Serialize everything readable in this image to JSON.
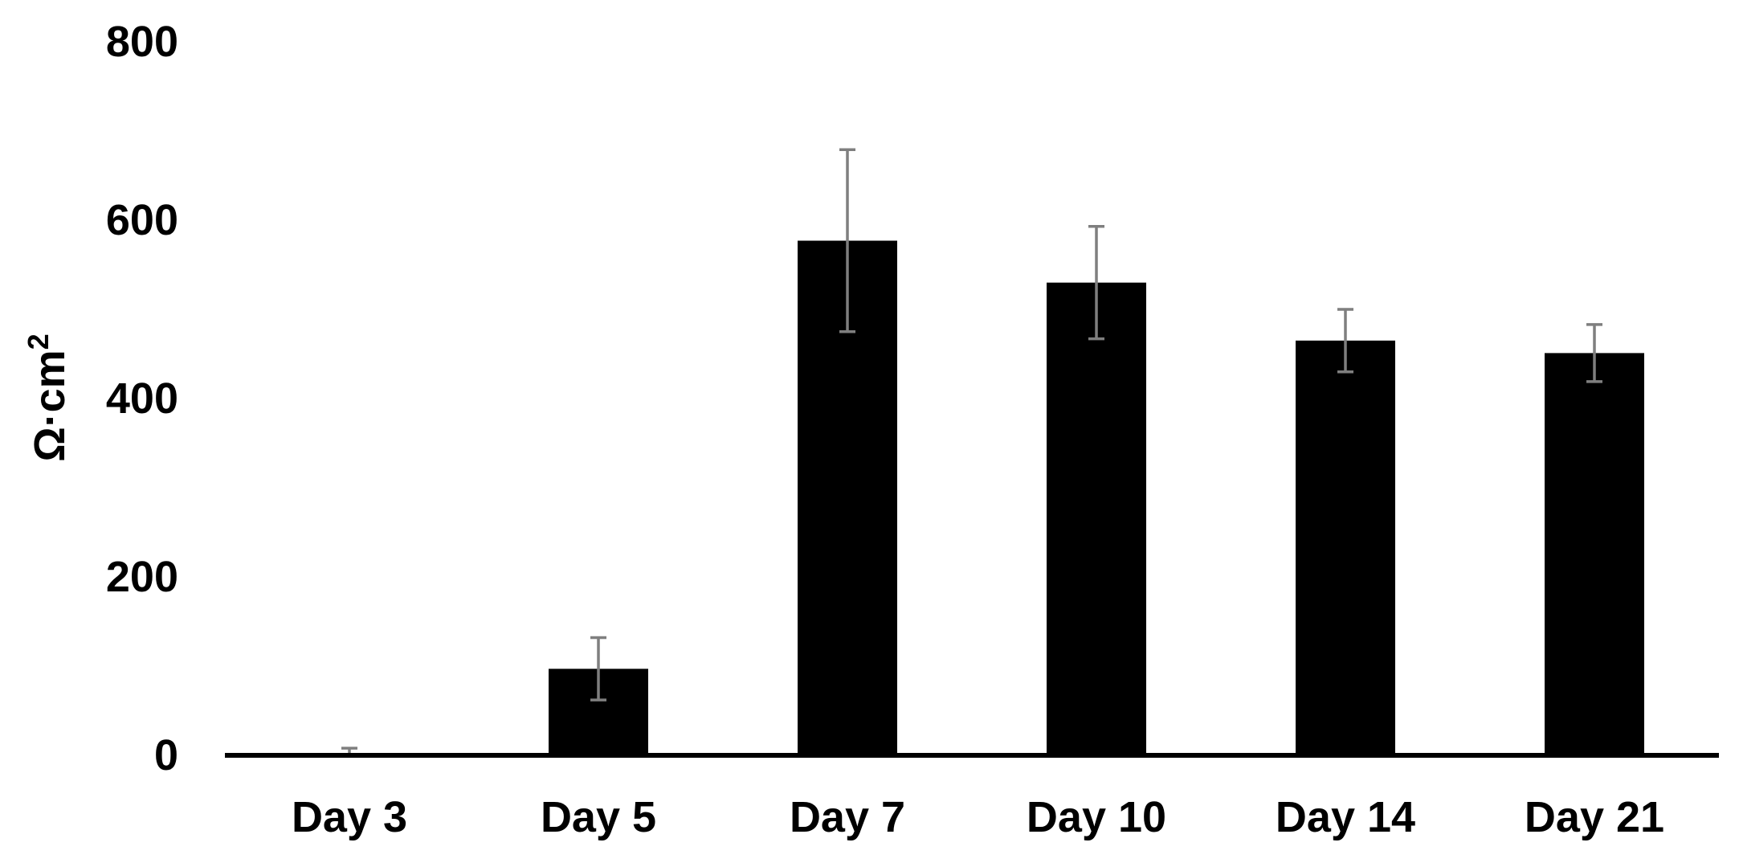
{
  "chart_data": {
    "type": "bar",
    "title": "",
    "xlabel": "",
    "ylabel": "Ω·cm",
    "ylabel_superscript": "2",
    "categories": [
      "Day 3",
      "Day 5",
      "Day 7",
      "Day 10",
      "Day 14",
      "Day 21"
    ],
    "series": [
      {
        "values": [
          2,
          97,
          577,
          530,
          465,
          451
        ],
        "error": [
          6,
          35,
          102,
          63,
          35,
          32
        ]
      }
    ],
    "ylim": [
      0,
      800
    ],
    "yticks": [
      0,
      200,
      400,
      600,
      800
    ],
    "grid": false,
    "legend": "none",
    "colors": {
      "bar": "#000000",
      "error_bar": "#7f7f7f",
      "axis": "#000000"
    }
  }
}
